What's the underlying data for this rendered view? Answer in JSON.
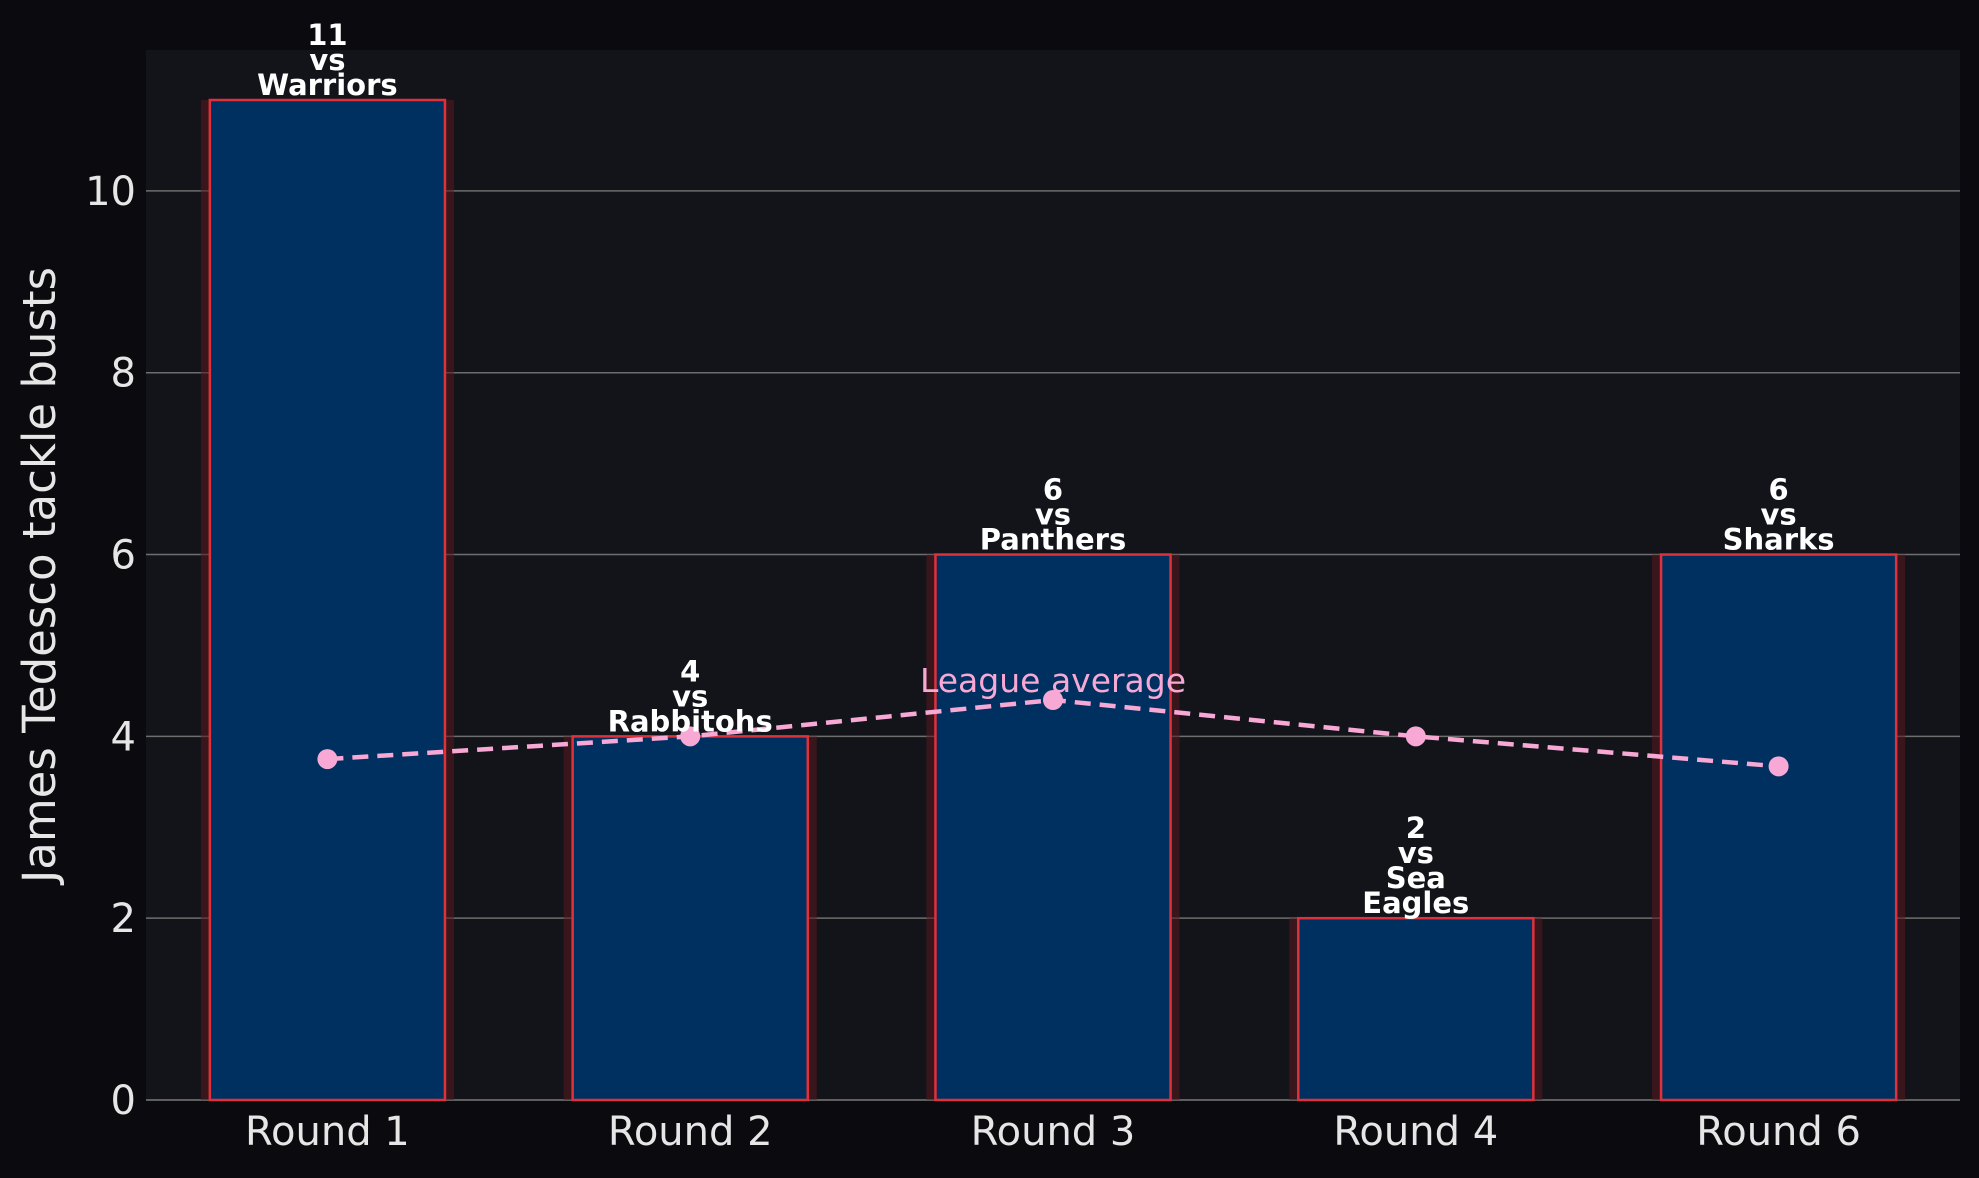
{
  "chart_data": {
    "type": "bar",
    "title": "",
    "xlabel": "",
    "ylabel": "James Tedesco tackle busts",
    "categories": [
      "Round 1",
      "Round 2",
      "Round 3",
      "Round 4",
      "Round 6"
    ],
    "values": [
      11,
      4,
      6,
      2,
      6
    ],
    "bar_labels": [
      [
        "11",
        "vs",
        "Warriors"
      ],
      [
        "4",
        "vs",
        "Rabbitohs"
      ],
      [
        "6",
        "vs",
        "Panthers"
      ],
      [
        "2",
        "vs",
        "Sea",
        "Eagles"
      ],
      [
        "6",
        "vs",
        "Sharks"
      ]
    ],
    "series": [
      {
        "name": "League average",
        "type": "line",
        "style": "dashed",
        "values": [
          3.75,
          4.0,
          4.4,
          4.0,
          3.67
        ]
      }
    ],
    "ylim": [
      0,
      11.55
    ],
    "yticks": [
      0,
      2,
      4,
      6,
      8,
      10
    ],
    "grid": "horizontal",
    "legend": "none",
    "line_label": "League average",
    "colors": {
      "page_background": "#0b0b0f",
      "plot_background": "#13131a",
      "bar_fill": "#00305f",
      "bar_edge": "#e0313a",
      "bar_glow": "#5a1a1f",
      "line": "#f7a8d4",
      "grid": "#6e6e6e",
      "axis": "#7a7a7a",
      "tick_text": "#e6e6e6",
      "label_text": "#ffffff"
    }
  }
}
